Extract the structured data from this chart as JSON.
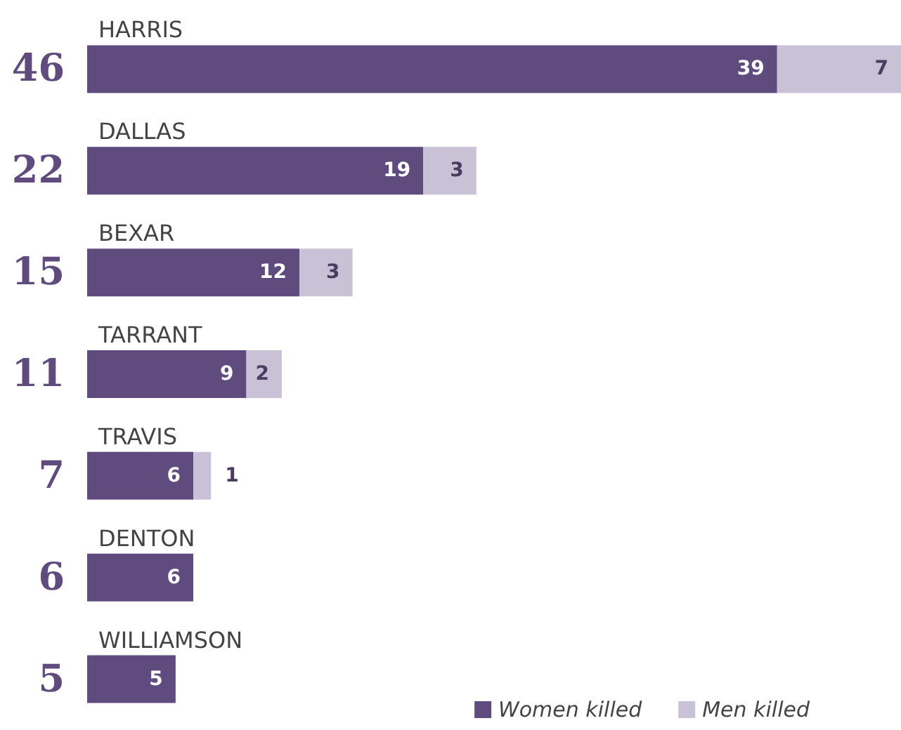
{
  "chart_data": {
    "type": "bar",
    "orientation": "horizontal",
    "stacked": true,
    "data_labels": true,
    "legend": "bottom right",
    "categories": [
      "HARRIS",
      "DALLAS",
      "BEXAR",
      "TARRANT",
      "TRAVIS",
      "DENTON",
      "WILLIAMSON"
    ],
    "series": [
      {
        "name": "Women killed",
        "color": "#5f4b7d",
        "values": [
          39,
          19,
          12,
          9,
          6,
          6,
          5
        ]
      },
      {
        "name": "Men killed",
        "color": "#c9c2d6",
        "values": [
          7,
          3,
          3,
          2,
          1,
          null,
          null
        ]
      }
    ],
    "totals": [
      "46",
      "22",
      "15",
      "11",
      "7",
      "6",
      "5"
    ]
  }
}
